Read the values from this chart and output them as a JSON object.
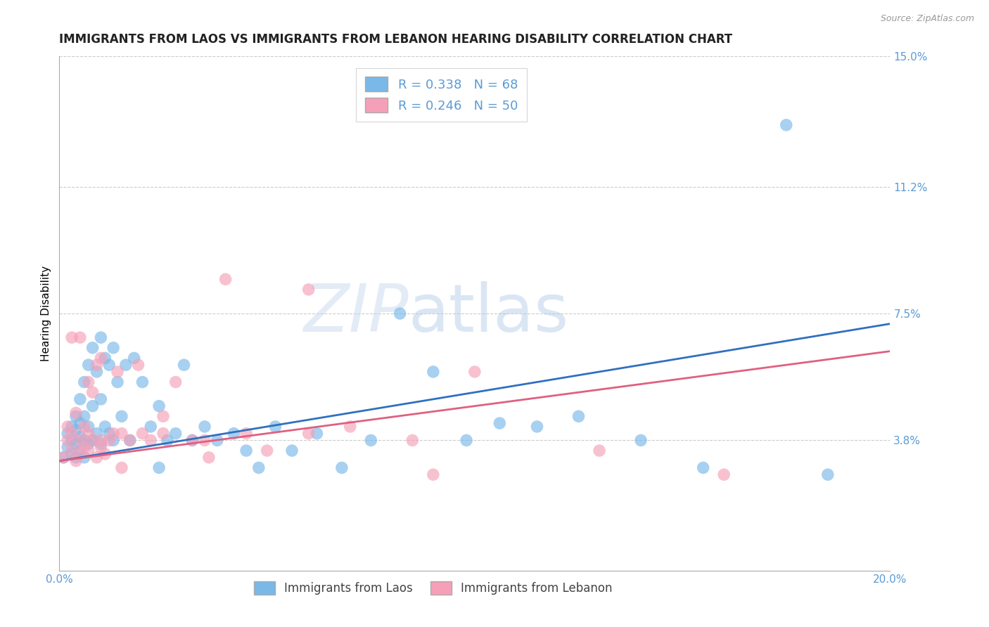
{
  "title": "IMMIGRANTS FROM LAOS VS IMMIGRANTS FROM LEBANON HEARING DISABILITY CORRELATION CHART",
  "source": "Source: ZipAtlas.com",
  "xlabel_laos": "Immigrants from Laos",
  "xlabel_lebanon": "Immigrants from Lebanon",
  "ylabel": "Hearing Disability",
  "xmin": 0.0,
  "xmax": 0.2,
  "ymin": 0.0,
  "ymax": 0.15,
  "yticks": [
    0.038,
    0.075,
    0.112,
    0.15
  ],
  "ytick_labels": [
    "3.8%",
    "7.5%",
    "11.2%",
    "15.0%"
  ],
  "xticks": [
    0.0,
    0.05,
    0.1,
    0.15,
    0.2
  ],
  "xtick_labels": [
    "0.0%",
    "",
    "",
    "",
    "20.0%"
  ],
  "color_laos": "#7ab8e8",
  "color_lebanon": "#f5a0b8",
  "line_color_laos": "#3070c0",
  "line_color_lebanon": "#e06080",
  "R_laos": 0.338,
  "N_laos": 68,
  "R_lebanon": 0.246,
  "N_lebanon": 50,
  "laos_line_x0": 0.0,
  "laos_line_y0": 0.032,
  "laos_line_x1": 0.2,
  "laos_line_y1": 0.072,
  "lebanon_line_x0": 0.0,
  "lebanon_line_y0": 0.032,
  "lebanon_line_x1": 0.2,
  "lebanon_line_y1": 0.064,
  "laos_x": [
    0.001,
    0.002,
    0.002,
    0.003,
    0.003,
    0.003,
    0.004,
    0.004,
    0.004,
    0.004,
    0.005,
    0.005,
    0.005,
    0.005,
    0.006,
    0.006,
    0.006,
    0.006,
    0.007,
    0.007,
    0.007,
    0.008,
    0.008,
    0.008,
    0.009,
    0.009,
    0.01,
    0.01,
    0.01,
    0.011,
    0.011,
    0.012,
    0.012,
    0.013,
    0.013,
    0.014,
    0.015,
    0.016,
    0.017,
    0.018,
    0.02,
    0.022,
    0.024,
    0.024,
    0.026,
    0.028,
    0.03,
    0.032,
    0.035,
    0.038,
    0.042,
    0.045,
    0.048,
    0.052,
    0.056,
    0.062,
    0.068,
    0.075,
    0.082,
    0.09,
    0.098,
    0.106,
    0.115,
    0.125,
    0.14,
    0.155,
    0.175,
    0.185
  ],
  "laos_y": [
    0.033,
    0.036,
    0.04,
    0.034,
    0.038,
    0.042,
    0.033,
    0.037,
    0.041,
    0.045,
    0.035,
    0.039,
    0.043,
    0.05,
    0.033,
    0.038,
    0.045,
    0.055,
    0.037,
    0.042,
    0.06,
    0.038,
    0.048,
    0.065,
    0.04,
    0.058,
    0.037,
    0.05,
    0.068,
    0.042,
    0.062,
    0.04,
    0.06,
    0.038,
    0.065,
    0.055,
    0.045,
    0.06,
    0.038,
    0.062,
    0.055,
    0.042,
    0.03,
    0.048,
    0.038,
    0.04,
    0.06,
    0.038,
    0.042,
    0.038,
    0.04,
    0.035,
    0.03,
    0.042,
    0.035,
    0.04,
    0.03,
    0.038,
    0.075,
    0.058,
    0.038,
    0.043,
    0.042,
    0.045,
    0.038,
    0.03,
    0.13,
    0.028
  ],
  "lebanon_x": [
    0.001,
    0.002,
    0.002,
    0.003,
    0.003,
    0.004,
    0.004,
    0.005,
    0.005,
    0.006,
    0.006,
    0.007,
    0.007,
    0.008,
    0.008,
    0.009,
    0.009,
    0.01,
    0.01,
    0.011,
    0.012,
    0.013,
    0.014,
    0.015,
    0.017,
    0.019,
    0.022,
    0.025,
    0.028,
    0.032,
    0.036,
    0.04,
    0.045,
    0.05,
    0.06,
    0.07,
    0.085,
    0.1,
    0.13,
    0.16,
    0.003,
    0.005,
    0.007,
    0.01,
    0.015,
    0.02,
    0.025,
    0.035,
    0.06,
    0.09
  ],
  "lebanon_y": [
    0.033,
    0.038,
    0.042,
    0.035,
    0.04,
    0.032,
    0.046,
    0.034,
    0.038,
    0.042,
    0.036,
    0.04,
    0.055,
    0.038,
    0.052,
    0.033,
    0.06,
    0.036,
    0.062,
    0.034,
    0.038,
    0.04,
    0.058,
    0.03,
    0.038,
    0.06,
    0.038,
    0.045,
    0.055,
    0.038,
    0.033,
    0.085,
    0.04,
    0.035,
    0.04,
    0.042,
    0.038,
    0.058,
    0.035,
    0.028,
    0.068,
    0.068,
    0.035,
    0.038,
    0.04,
    0.04,
    0.04,
    0.038,
    0.082,
    0.028
  ],
  "watermark_zip": "ZIP",
  "watermark_atlas": "atlas",
  "background_color": "#ffffff",
  "grid_color": "#cccccc",
  "tick_label_color": "#5b9bd5",
  "title_fontsize": 12,
  "axis_label_fontsize": 11,
  "tick_fontsize": 11
}
